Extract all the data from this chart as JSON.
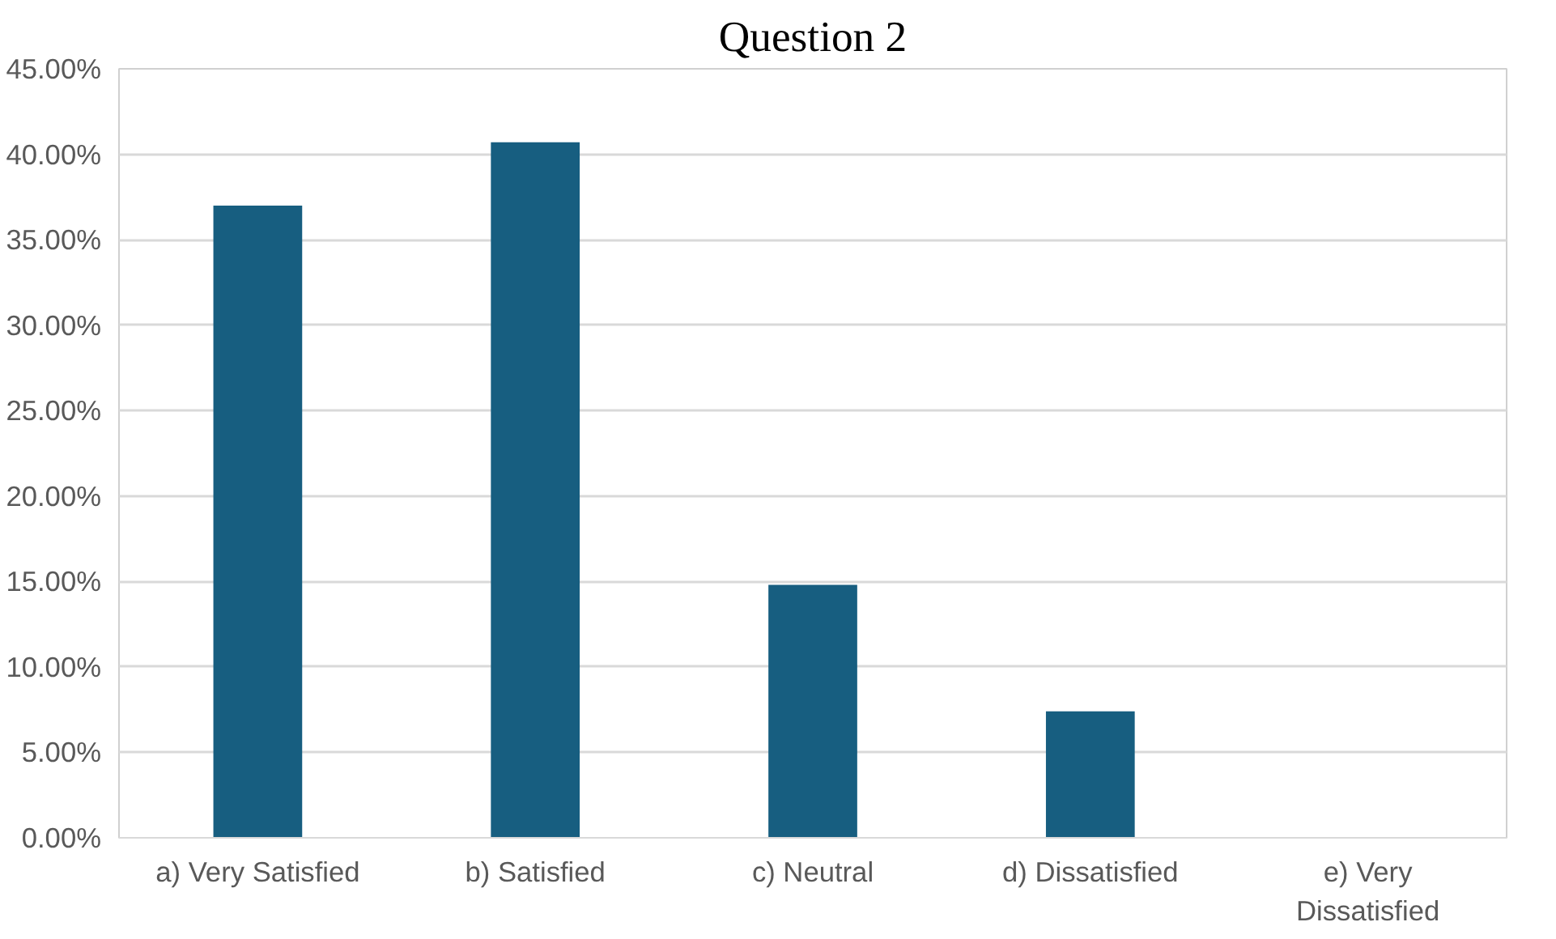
{
  "chart_data": {
    "type": "bar",
    "title": "Question 2",
    "categories": [
      "a) Very Satisfied",
      "b) Satisfied",
      "c) Neutral",
      "d) Dissatisfied",
      "e) Very Dissatisfied"
    ],
    "values": [
      37.0,
      40.7,
      14.8,
      7.4,
      0
    ],
    "color": "#175e80",
    "ylim": [
      0,
      45
    ],
    "yticks": [
      {
        "value": 0,
        "label": "0.00%"
      },
      {
        "value": 5,
        "label": "5.00%"
      },
      {
        "value": 10,
        "label": "10.00%"
      },
      {
        "value": 15,
        "label": "15.00%"
      },
      {
        "value": 20,
        "label": "20.00%"
      },
      {
        "value": 25,
        "label": "25.00%"
      },
      {
        "value": 30,
        "label": "30.00%"
      },
      {
        "value": 35,
        "label": "35.00%"
      },
      {
        "value": 40,
        "label": "40.00%"
      },
      {
        "value": 45,
        "label": "45.00%"
      }
    ],
    "grid": "y"
  }
}
